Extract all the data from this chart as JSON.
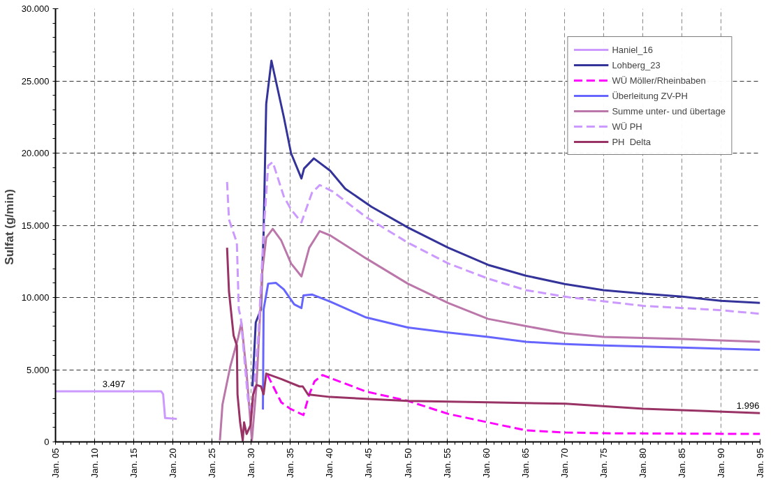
{
  "chart_data": {
    "type": "line",
    "ylabel": "Sulfat  (g/min)",
    "xlim": [
      "2005-01",
      "2095-01"
    ],
    "xticks": [
      {
        "value": "2005-01",
        "label": "Jan. 05"
      },
      {
        "value": "2010-01",
        "label": "Jan. 10"
      },
      {
        "value": "2015-01",
        "label": "Jan. 15"
      },
      {
        "value": "2020-01",
        "label": "Jan. 20"
      },
      {
        "value": "2025-01",
        "label": "Jan. 25"
      },
      {
        "value": "2030-01",
        "label": "Jan. 30"
      },
      {
        "value": "2035-01",
        "label": "Jan. 35"
      },
      {
        "value": "2040-01",
        "label": "Jan. 40"
      },
      {
        "value": "2045-01",
        "label": "Jan. 45"
      },
      {
        "value": "2050-01",
        "label": "Jan. 50"
      },
      {
        "value": "2055-01",
        "label": "Jan. 55"
      },
      {
        "value": "2060-01",
        "label": "Jan. 60"
      },
      {
        "value": "2065-01",
        "label": "Jan. 65"
      },
      {
        "value": "2070-01",
        "label": "Jan. 70"
      },
      {
        "value": "2075-01",
        "label": "Jan. 75"
      },
      {
        "value": "2080-01",
        "label": "Jan. 80"
      },
      {
        "value": "2085-01",
        "label": "Jan. 85"
      },
      {
        "value": "2090-01",
        "label": "Jan. 90"
      },
      {
        "value": "2095-01",
        "label": "Jan. 95"
      }
    ],
    "ylim": [
      0,
      30000
    ],
    "yticks": [
      0,
      {
        "value": 5000,
        "label": "5.000"
      },
      {
        "value": 10000,
        "label": "10.000"
      },
      {
        "value": 15000,
        "label": "15.000"
      },
      {
        "value": 20000,
        "label": "20.000"
      },
      {
        "value": 25000,
        "label": "25.000"
      },
      {
        "value": 30000,
        "label": "30.000"
      }
    ],
    "grid": true,
    "legend": "top right",
    "series": [
      {
        "name": "Haniel_16",
        "color": "#cc99ff",
        "line_style": "solid",
        "x": [
          "2005-01",
          "2018-07",
          "2018-10",
          "2019-01",
          "2020-07"
        ],
        "values": [
          3497,
          3497,
          3300,
          1650,
          1600
        ]
      },
      {
        "name": "Lohberg_23",
        "color": "#333399",
        "line_style": "solid",
        "x": [
          "2030-03",
          "2030-08",
          "2031-04",
          "2031-08",
          "2031-12",
          "2032-08",
          "2034-03",
          "2035-02",
          "2036-06",
          "2036-10",
          "2038-01",
          "2040-02",
          "2042-01",
          "2045-05",
          "2050-01",
          "2055-03",
          "2060-04",
          "2065-02",
          "2070-02",
          "2075-01",
          "2080-02",
          "2085-02",
          "2090-01",
          "2095-01"
        ],
        "values": [
          3840,
          8270,
          9170,
          14500,
          23400,
          26400,
          22500,
          20000,
          18240,
          18930,
          19630,
          18780,
          17540,
          16290,
          14850,
          13450,
          12260,
          11510,
          10930,
          10510,
          10260,
          10060,
          9770,
          9620
        ]
      },
      {
        "name": "WÜ Möller/Rheinbaben",
        "color": "#ff00ff",
        "line_style": "dashed",
        "x": [
          "2032-02",
          "2033-11",
          "2035-01",
          "2036-09",
          "2037-06",
          "2038-02",
          "2039-02",
          "2044-09",
          "2050-01",
          "2055-03",
          "2060-04",
          "2065-02",
          "2070-03",
          "2075-01",
          "2095-01"
        ],
        "values": [
          4630,
          2740,
          2290,
          1860,
          3290,
          4190,
          4630,
          3490,
          2840,
          1940,
          1350,
          800,
          650,
          600,
          550
        ]
      },
      {
        "name": "Überleitung ZV-PH",
        "color": "#6666ff",
        "line_style": "solid",
        "x": [
          "2031-07",
          "2031-08",
          "2032-03",
          "2033-03",
          "2034-03",
          "2035-07",
          "2036-06",
          "2036-09",
          "2037-10",
          "2040-02",
          "2044-09",
          "2050-01",
          "2055-03",
          "2060-04",
          "2065-02",
          "2070-02",
          "2075-01",
          "2085-02",
          "2095-01"
        ],
        "values": [
          2240,
          9170,
          10960,
          11010,
          10560,
          9520,
          9270,
          10140,
          10210,
          9720,
          8620,
          7920,
          7570,
          7270,
          6930,
          6780,
          6680,
          6530,
          6380
        ]
      },
      {
        "name": "Summe unter- und übertage",
        "color": "#bb77aa",
        "line_style": "solid",
        "x": [
          "2026-01",
          "2026-05",
          "2027-05",
          "2028-05",
          "2028-10",
          "2029-06",
          "2030-02",
          "2030-09",
          "2031-06",
          "2031-12",
          "2032-10",
          "2033-11",
          "2035-02",
          "2036-06",
          "2037-06",
          "2038-10",
          "2040-02",
          "2044-09",
          "2050-01",
          "2055-03",
          "2060-04",
          "2065-02",
          "2070-02",
          "2075-01",
          "2085-02",
          "2095-01"
        ],
        "values": [
          100,
          2590,
          5230,
          7220,
          8270,
          4730,
          100,
          3840,
          11810,
          14150,
          14750,
          13950,
          12360,
          11460,
          13450,
          14600,
          14300,
          12710,
          10960,
          9620,
          8520,
          8020,
          7520,
          7270,
          7120,
          6930
        ]
      },
      {
        "name": "WÜ PH",
        "color": "#cc99ff",
        "line_style": "dashed",
        "x": [
          "2026-12",
          "2027-03",
          "2028-03",
          "2028-06",
          "2028-09",
          "2029-08",
          "2030-02",
          "2030-12",
          "2031-08",
          "2032-03",
          "2032-10",
          "2034-03",
          "2035-02",
          "2036-06",
          "2037-10",
          "2038-10",
          "2040-06",
          "2044-09",
          "2050-01",
          "2055-03",
          "2060-04",
          "2065-02",
          "2070-09",
          "2080-02",
          "2090-01",
          "2095-01"
        ],
        "values": [
          18000,
          15400,
          13800,
          9170,
          8620,
          2940,
          2040,
          7370,
          14500,
          19130,
          19380,
          17000,
          16100,
          15200,
          17240,
          17790,
          17340,
          15570,
          13800,
          12360,
          11310,
          10510,
          10010,
          9420,
          9120,
          8870
        ]
      },
      {
        "name": "PH  Delta",
        "color": "#993366",
        "line_style": "solid",
        "x": [
          "2026-12",
          "2027-03",
          "2027-10",
          "2028-03",
          "2028-04",
          "2028-08",
          "2028-12",
          "2029-02",
          "2029-06",
          "2029-12",
          "2030-04",
          "2030-09",
          "2031-04",
          "2031-08",
          "2031-12",
          "2033-11",
          "2036-03",
          "2036-08",
          "2037-04",
          "2040-02",
          "2050-01",
          "2060-04",
          "2070-03",
          "2080-02",
          "2095-01"
        ],
        "values": [
          13450,
          10410,
          7370,
          6680,
          3290,
          1350,
          100,
          1350,
          550,
          1150,
          3290,
          3940,
          3840,
          3290,
          4730,
          4350,
          3840,
          3840,
          3290,
          3110,
          2840,
          2740,
          2640,
          2290,
          1996
        ]
      }
    ],
    "annotations": [
      {
        "text": "3.497",
        "x": "2011-01",
        "y": 3497
      },
      {
        "text": "1.996",
        "x": "2092-01",
        "y": 1996
      }
    ]
  }
}
